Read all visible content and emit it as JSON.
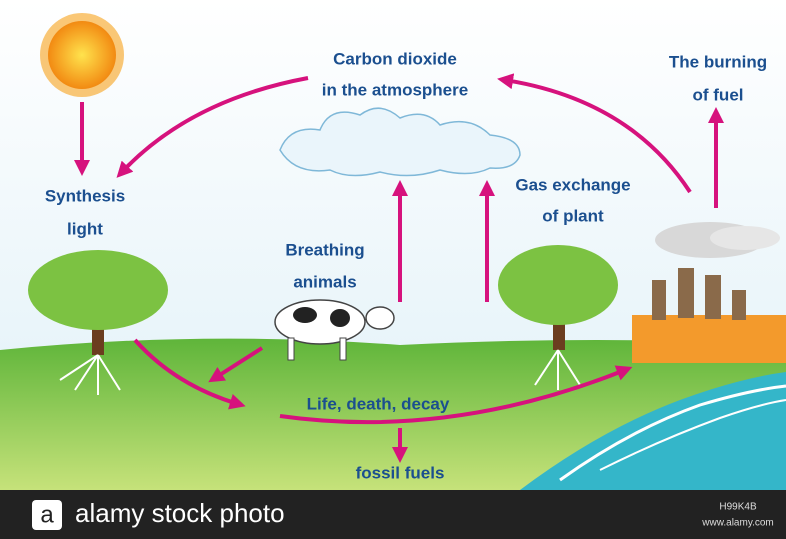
{
  "labels": [
    {
      "lines": [
        "Carbon dioxide",
        "in the atmosphere"
      ]
    },
    {
      "lines": [
        "The burning",
        "of fuel"
      ]
    },
    {
      "lines": [
        "Synthesis",
        "light"
      ]
    },
    {
      "lines": [
        "Gas exchange",
        "of plant"
      ]
    },
    {
      "lines": [
        "Breathing",
        "animals"
      ]
    },
    {
      "lines": [
        "Life, death, decay"
      ]
    },
    {
      "lines": [
        "fossil fuels"
      ]
    }
  ],
  "footer": {
    "logo": "a",
    "brand": "alamy stock photo",
    "image_id": "H99K4B",
    "url": "www.alamy.com"
  }
}
